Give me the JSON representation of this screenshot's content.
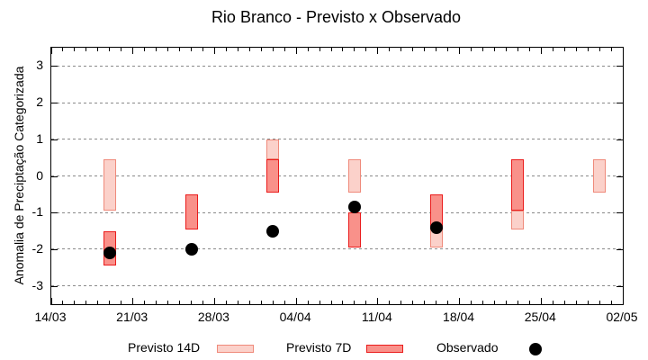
{
  "chart_data": {
    "type": "bar",
    "subtype": "floating-range-bars-with-points",
    "title": "Rio Branco - Previsto x Observado",
    "ylabel": "Anomalia de Preciptação Categorizada",
    "xlabel": "",
    "ylim": [
      -3.5,
      3.5
    ],
    "yticks": [
      3,
      2,
      1,
      0,
      -1,
      -2,
      -3
    ],
    "grid": "dotted-horizontal",
    "x_axis": {
      "tick_labels": [
        "14/03",
        "21/03",
        "28/03",
        "04/04",
        "11/04",
        "18/04",
        "25/04",
        "02/05"
      ],
      "total_days": 49,
      "major_tick_interval_days": 7,
      "minor_tick_interval_days": 1
    },
    "colors": {
      "previsto_14d_fill": "#fbd1ca",
      "previsto_14d_border": "#ef8a7b",
      "previsto_7d_fill": "#f9918a",
      "previsto_7d_border": "#ea1c1c",
      "observado": "#000000",
      "grid": "#8a8a8a",
      "axis": "#000000"
    },
    "series": [
      {
        "name": "Previsto 14D",
        "type": "range-bar",
        "points": [
          {
            "date": "19/03",
            "day": 5,
            "high": 0.45,
            "low": -0.95
          },
          {
            "date": "02/04",
            "day": 19,
            "high": 1.0,
            "low": 0.45
          },
          {
            "date": "09/04",
            "day": 26,
            "high": 0.45,
            "low": -0.45
          },
          {
            "date": "16/04",
            "day": 33,
            "high": -1.45,
            "low": -1.95
          },
          {
            "date": "23/04",
            "day": 40,
            "high": -0.95,
            "low": -1.45
          },
          {
            "date": "30/04",
            "day": 47,
            "high": 0.45,
            "low": -0.45
          }
        ]
      },
      {
        "name": "Previsto 7D",
        "type": "range-bar",
        "points": [
          {
            "date": "19/03",
            "day": 5,
            "high": -1.5,
            "low": -2.45
          },
          {
            "date": "26/03",
            "day": 12,
            "high": -0.5,
            "low": -1.45
          },
          {
            "date": "02/04",
            "day": 19,
            "high": 0.45,
            "low": -0.45
          },
          {
            "date": "09/04",
            "day": 26,
            "high": -1.0,
            "low": -1.95
          },
          {
            "date": "16/04",
            "day": 33,
            "high": -0.5,
            "low": -1.45
          },
          {
            "date": "23/04",
            "day": 40,
            "high": 0.45,
            "low": -0.95
          }
        ]
      },
      {
        "name": "Observado",
        "type": "point",
        "points": [
          {
            "date": "19/03",
            "day": 5,
            "value": -2.1
          },
          {
            "date": "26/03",
            "day": 12,
            "value": -2.0
          },
          {
            "date": "02/04",
            "day": 19,
            "value": -1.5
          },
          {
            "date": "09/04",
            "day": 26,
            "value": -0.85
          },
          {
            "date": "16/04",
            "day": 33,
            "value": -1.4
          }
        ]
      }
    ],
    "legend": {
      "position": "bottom",
      "items": [
        {
          "label": "Previsto 14D",
          "marker": "pink-box"
        },
        {
          "label": "Previsto 7D",
          "marker": "red-box"
        },
        {
          "label": "Observado",
          "marker": "black-dot"
        }
      ]
    }
  }
}
